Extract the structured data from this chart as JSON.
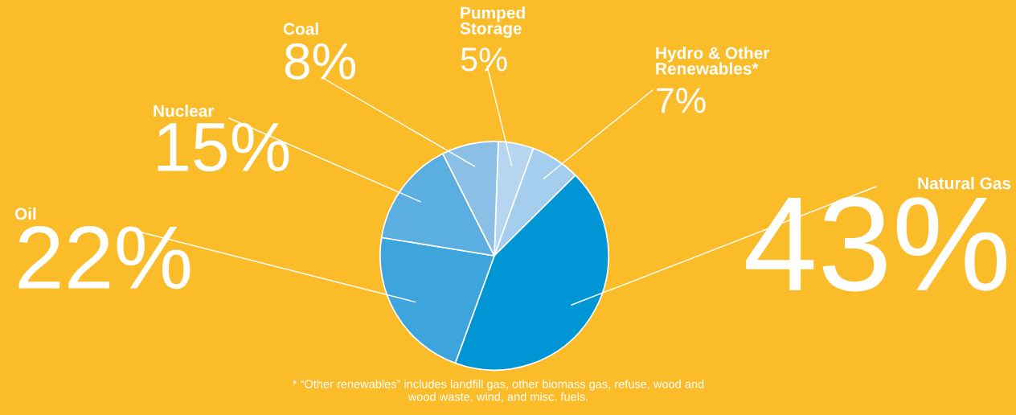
{
  "chart_data": {
    "type": "pie",
    "categories": [
      "Pumped Storage",
      "Hydro & Other Renewables*",
      "Natural Gas",
      "Oil",
      "Nuclear",
      "Coal"
    ],
    "values": [
      5,
      7,
      43,
      22,
      15,
      8
    ],
    "value_labels": [
      "5%",
      "7%",
      "43%",
      "22%",
      "15%",
      "8%"
    ],
    "colors": [
      "#b5d5f0",
      "#a5cdee",
      "#0096d6",
      "#3da4dc",
      "#5aaee0",
      "#8bbfe6"
    ],
    "annotations": [
      "* “Other renewables” includes landfill gas, other biomass gas, refuse, wood and wood waste, wind, and misc. fuels."
    ]
  }
}
